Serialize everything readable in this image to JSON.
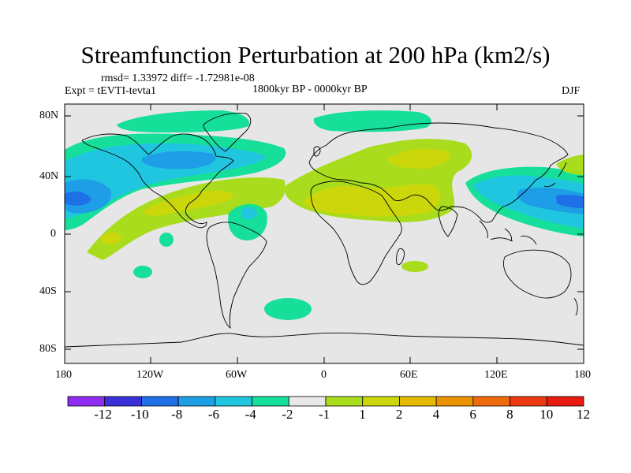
{
  "title": "Streamfunction Perturbation at 200 hPa (km2/s)",
  "stats": "rmsd= 1.33972 diff= -1.72981e-08",
  "experiment": "Expt = tEVTI-tevta1",
  "period": "1800kyr BP - 0000kyr BP",
  "season": "DJF",
  "colors": {
    "background_field": "#e6e6e6",
    "levels": [
      "#8e2cf0",
      "#3a30d8",
      "#1f6fe6",
      "#1d9ee6",
      "#20c6e0",
      "#16df9a",
      "#e8e8e8",
      "#a8dc1c",
      "#cbd70a",
      "#e5ba00",
      "#eb9400",
      "#ef6a0c",
      "#ee3812",
      "#e81a12"
    ]
  },
  "chart_data": {
    "type": "heatmap",
    "projection": "cylindrical-equidistant",
    "xlim": [
      -180,
      180
    ],
    "ylim": [
      -90,
      90
    ],
    "x_ticks": [
      "180",
      "120W",
      "60W",
      "0",
      "60E",
      "120E",
      "180"
    ],
    "y_ticks": [
      "80N",
      "40N",
      "0",
      "40S",
      "80S"
    ],
    "colorbar_labels": [
      "-12",
      "-10",
      "-8",
      "-6",
      "-4",
      "-2",
      "-1",
      "1",
      "2",
      "4",
      "6",
      "8",
      "10",
      "12"
    ],
    "regions": [
      {
        "name": "north-pacific-negative",
        "lon": -150,
        "lat": 28,
        "value": -5
      },
      {
        "name": "north-america-negative",
        "lon": -90,
        "lat": 50,
        "value": -5
      },
      {
        "name": "west-pacific-negative",
        "lon": 150,
        "lat": 27,
        "value": -5
      },
      {
        "name": "arctic-eurasia-negative",
        "lon": 30,
        "lat": 78,
        "value": -1.5
      },
      {
        "name": "south-atlantic-negative",
        "lon": -25,
        "lat": -52,
        "value": -1.5
      },
      {
        "name": "tropical-atlantic-negative",
        "lon": -50,
        "lat": 10,
        "value": -2
      },
      {
        "name": "north-africa-asia-positive",
        "lon": 40,
        "lat": 25,
        "value": 3
      },
      {
        "name": "tropical-pacific-positive",
        "lon": -100,
        "lat": 15,
        "value": 3
      }
    ]
  }
}
